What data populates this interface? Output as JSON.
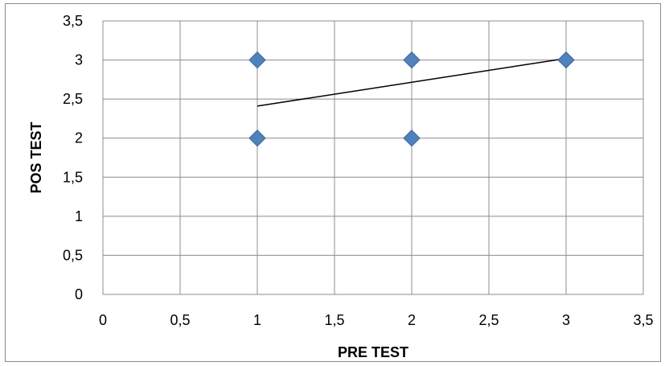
{
  "chart_data": {
    "type": "scatter",
    "title": "",
    "xlabel": "PRE TEST",
    "ylabel": "POS TEST",
    "xlim": [
      0,
      3.5
    ],
    "ylim": [
      0,
      3.5
    ],
    "xticks": [
      "0",
      "0,5",
      "1",
      "1,5",
      "2",
      "2,5",
      "3",
      "3,5"
    ],
    "yticks": [
      "0",
      "0,5",
      "1",
      "1,5",
      "2",
      "2,5",
      "3",
      "3,5"
    ],
    "xtick_values": [
      0,
      0.5,
      1,
      1.5,
      2,
      2.5,
      3,
      3.5
    ],
    "ytick_values": [
      0,
      0.5,
      1,
      1.5,
      2,
      2.5,
      3,
      3.5
    ],
    "grid": true,
    "legend": "none",
    "series": [
      {
        "points": [
          {
            "x": 1,
            "y": 3
          },
          {
            "x": 2,
            "y": 3
          },
          {
            "x": 3,
            "y": 3
          },
          {
            "x": 1,
            "y": 2
          },
          {
            "x": 2,
            "y": 2
          }
        ],
        "marker": "diamond",
        "color": "#4f81bd"
      }
    ],
    "trendline": {
      "type": "linear",
      "from": {
        "x": 1,
        "y": 2.41
      },
      "to": {
        "x": 3,
        "y": 3.02
      },
      "color": "#000000"
    }
  }
}
